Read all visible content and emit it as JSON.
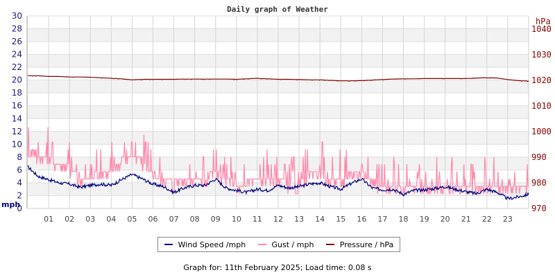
{
  "chart_data": {
    "type": "line",
    "title": "Daily graph of Weather",
    "xlabel": "",
    "ylabel_left": "mph",
    "ylabel_right": "hPa",
    "x_ticks": [
      "01",
      "02",
      "03",
      "04",
      "05",
      "06",
      "07",
      "08",
      "09",
      "10",
      "11",
      "12",
      "13",
      "14",
      "15",
      "16",
      "17",
      "18",
      "19",
      "20",
      "21",
      "22",
      "23"
    ],
    "y_left_ticks": [
      0,
      2,
      4,
      6,
      8,
      10,
      12,
      14,
      16,
      18,
      20,
      22,
      24,
      26,
      28,
      30
    ],
    "y_left_range": [
      0,
      30
    ],
    "y_right_ticks": [
      970,
      980,
      990,
      1000,
      1010,
      1020,
      1030,
      1040
    ],
    "y_right_range": [
      970,
      1045
    ],
    "grid": true,
    "legend_position": "bottom",
    "x": [
      0,
      0.5,
      1,
      1.5,
      2,
      2.5,
      3,
      3.5,
      4,
      4.5,
      5,
      5.5,
      6,
      6.5,
      7,
      7.5,
      8,
      8.5,
      9,
      9.5,
      10,
      10.5,
      11,
      11.5,
      12,
      12.5,
      13,
      13.5,
      14,
      14.5,
      15,
      15.5,
      16,
      16.5,
      17,
      17.5,
      18,
      18.5,
      19,
      19.5,
      20,
      20.5,
      21,
      21.5,
      22,
      22.5,
      23,
      23.5,
      24
    ],
    "series": [
      {
        "name": "Wind Speed /mph",
        "color": "#000080",
        "axis": "left",
        "values": [
          6.5,
          5.0,
          4.5,
          4.0,
          3.8,
          3.3,
          3.6,
          3.8,
          3.6,
          4.5,
          5.3,
          4.6,
          3.8,
          3.4,
          2.5,
          3.2,
          3.6,
          3.6,
          4.6,
          3.2,
          2.8,
          2.5,
          3.0,
          2.8,
          3.6,
          3.2,
          3.4,
          3.8,
          4.0,
          3.4,
          3.0,
          3.9,
          4.6,
          3.2,
          2.9,
          3.0,
          2.2,
          2.8,
          2.9,
          3.1,
          3.4,
          3.0,
          2.6,
          2.3,
          3.0,
          2.5,
          1.5,
          1.8,
          2.2
        ]
      },
      {
        "name": "Gust / mph",
        "color": "#ff88aa",
        "axis": "left",
        "values": [
          9.5,
          8.5,
          8.0,
          7.0,
          6.5,
          4.5,
          5.0,
          5.5,
          6.0,
          7.5,
          8.0,
          7.5,
          5.5,
          4.5,
          4.0,
          4.5,
          4.5,
          5.0,
          6.0,
          4.5,
          4.0,
          4.0,
          4.5,
          4.0,
          4.5,
          4.0,
          4.0,
          5.5,
          6.0,
          4.5,
          4.5,
          5.5,
          6.5,
          4.5,
          3.5,
          4.0,
          3.5,
          3.5,
          3.5,
          4.0,
          4.0,
          3.5,
          3.5,
          3.0,
          4.0,
          3.5,
          3.0,
          3.5,
          3.5
        ]
      },
      {
        "name": "Pressure / hPa",
        "color": "#800000",
        "axis": "right",
        "values": [
          1021.8,
          1021.8,
          1021.5,
          1021.5,
          1021.3,
          1021.3,
          1021.2,
          1021.0,
          1020.8,
          1020.6,
          1020.2,
          1020.4,
          1020.4,
          1020.4,
          1020.4,
          1020.5,
          1020.5,
          1020.5,
          1020.5,
          1020.5,
          1020.4,
          1020.6,
          1020.8,
          1020.6,
          1020.4,
          1020.4,
          1020.3,
          1020.2,
          1020.2,
          1020.0,
          1019.8,
          1019.8,
          1019.9,
          1020.1,
          1020.3,
          1020.5,
          1020.6,
          1020.6,
          1020.7,
          1020.7,
          1020.7,
          1020.7,
          1020.7,
          1020.9,
          1021.0,
          1020.9,
          1020.3,
          1019.9,
          1019.7
        ]
      }
    ]
  },
  "header": {
    "title": "Daily graph of Weather"
  },
  "axes": {
    "left_unit": "mph",
    "right_unit": "hPa"
  },
  "legend": {
    "items": [
      {
        "label": "Wind Speed /mph",
        "color": "#000080"
      },
      {
        "label": "Gust / mph",
        "color": "#ff88aa"
      },
      {
        "label": "Pressure / hPa",
        "color": "#800000"
      }
    ]
  },
  "footer": {
    "text": "Graph for: 11th February 2025; Load time: 0.08 s"
  }
}
